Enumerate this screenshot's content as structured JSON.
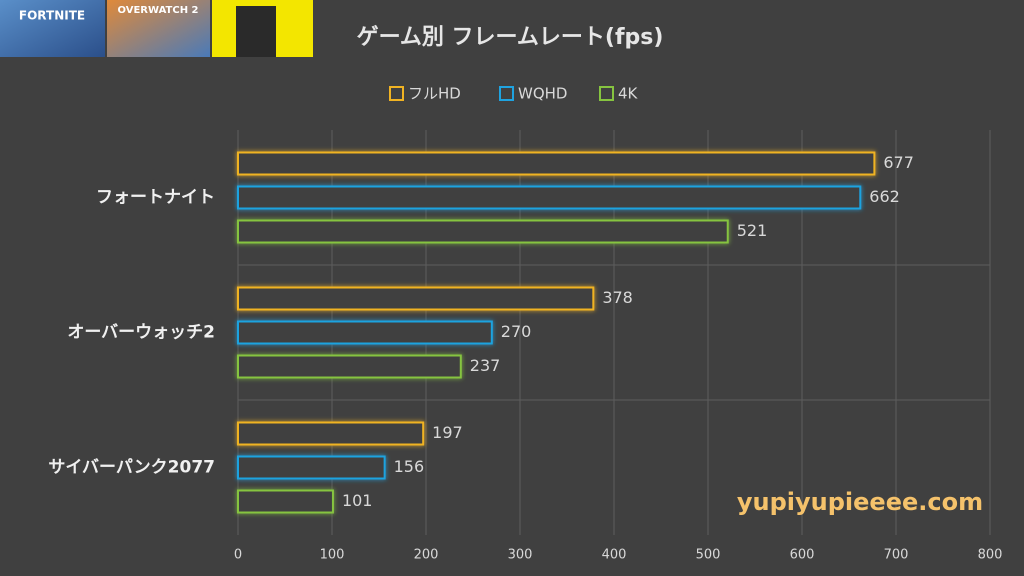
{
  "banners": [
    "FORTNITE",
    "OVERWATCH 2"
  ],
  "watermark": "yupiyupieeee.com",
  "chart_data": {
    "type": "hbar",
    "title": "ゲーム別 フレームレート(fps)",
    "categories": [
      "フォートナイト",
      "オーバーウォッチ2",
      "サイバーパンク2077"
    ],
    "series": [
      {
        "name": "フルHD",
        "color": "#f0b323",
        "values": [
          677,
          378,
          197
        ]
      },
      {
        "name": "WQHD",
        "color": "#1fa3e0",
        "values": [
          662,
          270,
          156
        ]
      },
      {
        "name": "4K",
        "color": "#86c440",
        "values": [
          521,
          237,
          101
        ]
      }
    ],
    "xlim": [
      0,
      800
    ],
    "xticks": [
      0,
      100,
      200,
      300,
      400,
      500,
      600,
      700,
      800
    ],
    "grid": true,
    "legend": "top"
  }
}
